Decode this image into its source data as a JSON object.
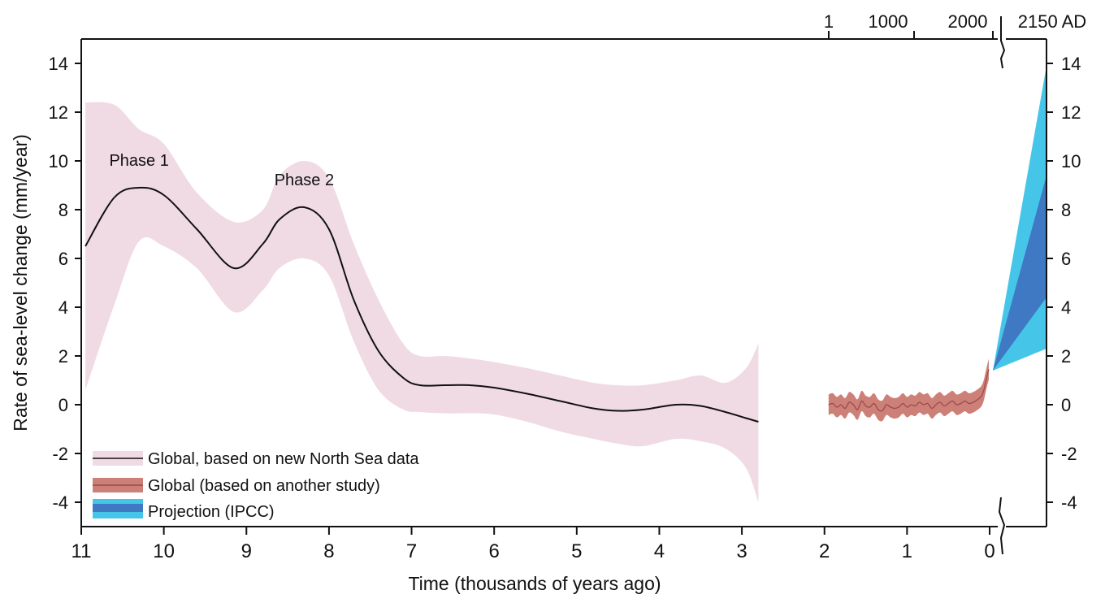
{
  "chart_data": {
    "type": "area",
    "ylabel": "Rate of sea-level change (mm/year)",
    "xlabel": "Time (thousands of years ago)",
    "xlim": [
      11,
      0
    ],
    "ylim": [
      -5,
      15
    ],
    "yticks": [
      "14",
      "12",
      "10",
      "8",
      "6",
      "4",
      "2",
      "0",
      "-2",
      "-4"
    ],
    "yticks_right": [
      "14",
      "12",
      "10",
      "8",
      "6",
      "4",
      "2",
      "0",
      "-2",
      "-4"
    ],
    "xticks": [
      "11",
      "10",
      "9",
      "8",
      "7",
      "6",
      "5",
      "4",
      "3",
      "2",
      "1",
      "0"
    ],
    "top_axis_labels": [
      "1",
      "1000",
      "2000",
      "2150 AD"
    ],
    "annotations": [
      {
        "text": "Phase 1",
        "x": 10.3,
        "y": 9.8
      },
      {
        "text": "Phase 2",
        "x": 8.3,
        "y": 9.0
      }
    ],
    "legend": [
      "Global, based on new North Sea data",
      "Global (based on another study)",
      "Projection (IPCC)"
    ],
    "series": [
      {
        "name": "Global, based on new North Sea data",
        "x": [
          10.95,
          10.6,
          10.3,
          10.0,
          9.6,
          9.15,
          8.8,
          8.6,
          8.3,
          8.0,
          7.7,
          7.4,
          7.1,
          6.9,
          6.6,
          6.3,
          6.0,
          5.6,
          5.2,
          4.8,
          4.5,
          4.2,
          3.8,
          3.5,
          3.2,
          2.95,
          2.8
        ],
        "y": [
          6.5,
          8.5,
          8.9,
          8.6,
          7.2,
          5.6,
          6.6,
          7.6,
          8.1,
          7.2,
          4.3,
          2.2,
          1.1,
          0.8,
          0.8,
          0.8,
          0.7,
          0.45,
          0.15,
          -0.15,
          -0.25,
          -0.2,
          0.0,
          -0.05,
          -0.3,
          -0.55,
          -0.7
        ],
        "upper": [
          12.4,
          12.3,
          11.3,
          10.7,
          8.7,
          7.5,
          8.0,
          9.4,
          10.0,
          9.3,
          6.6,
          4.3,
          2.5,
          2.0,
          2.0,
          1.9,
          1.75,
          1.5,
          1.2,
          0.9,
          0.8,
          0.8,
          1.0,
          1.2,
          0.9,
          1.5,
          2.5
        ],
        "lower": [
          0.6,
          4.1,
          6.7,
          6.5,
          5.6,
          3.8,
          4.7,
          5.6,
          6.0,
          5.3,
          2.6,
          0.6,
          -0.2,
          -0.3,
          -0.35,
          -0.35,
          -0.4,
          -0.7,
          -1.1,
          -1.4,
          -1.6,
          -1.7,
          -1.4,
          -1.5,
          -1.8,
          -2.6,
          -4.0
        ]
      },
      {
        "name": "Global (based on another study)",
        "x": [
          1.95,
          1.9,
          1.85,
          1.8,
          1.75,
          1.7,
          1.65,
          1.6,
          1.55,
          1.5,
          1.45,
          1.4,
          1.35,
          1.3,
          1.25,
          1.2,
          1.15,
          1.1,
          1.05,
          1.0,
          0.95,
          0.9,
          0.85,
          0.8,
          0.75,
          0.7,
          0.65,
          0.6,
          0.55,
          0.5,
          0.45,
          0.4,
          0.35,
          0.3,
          0.25,
          0.2,
          0.15,
          0.1,
          0.07,
          0.05,
          0.03,
          0.01
        ],
        "y": [
          0.0,
          0.05,
          -0.1,
          0.0,
          -0.15,
          0.1,
          0.0,
          -0.2,
          0.15,
          -0.05,
          -0.1,
          0.05,
          -0.2,
          -0.25,
          0.0,
          -0.1,
          -0.15,
          -0.1,
          0.05,
          -0.1,
          0.0,
          -0.05,
          0.1,
          0.0,
          0.05,
          -0.15,
          0.0,
          0.1,
          -0.05,
          0.05,
          0.15,
          0.0,
          0.05,
          0.15,
          0.05,
          0.1,
          0.2,
          0.35,
          0.6,
          0.9,
          1.2,
          1.45
        ],
        "halfwidth": 0.42
      },
      {
        "name": "Projection (IPCC)",
        "x": [
          "2000",
          "2150 AD"
        ],
        "start": 1.4,
        "outer_end": [
          2.3,
          13.9
        ],
        "inner_end": [
          4.4,
          9.4
        ]
      }
    ]
  },
  "colors": {
    "north_sea_band": "#f0dbe4",
    "north_sea_line": "#111111",
    "other_study_band": "#cd8078",
    "other_study_line": "#9a4b49",
    "projection_outer": "#45c6e8",
    "projection_inner": "#3f79c4",
    "axis": "#111111"
  }
}
